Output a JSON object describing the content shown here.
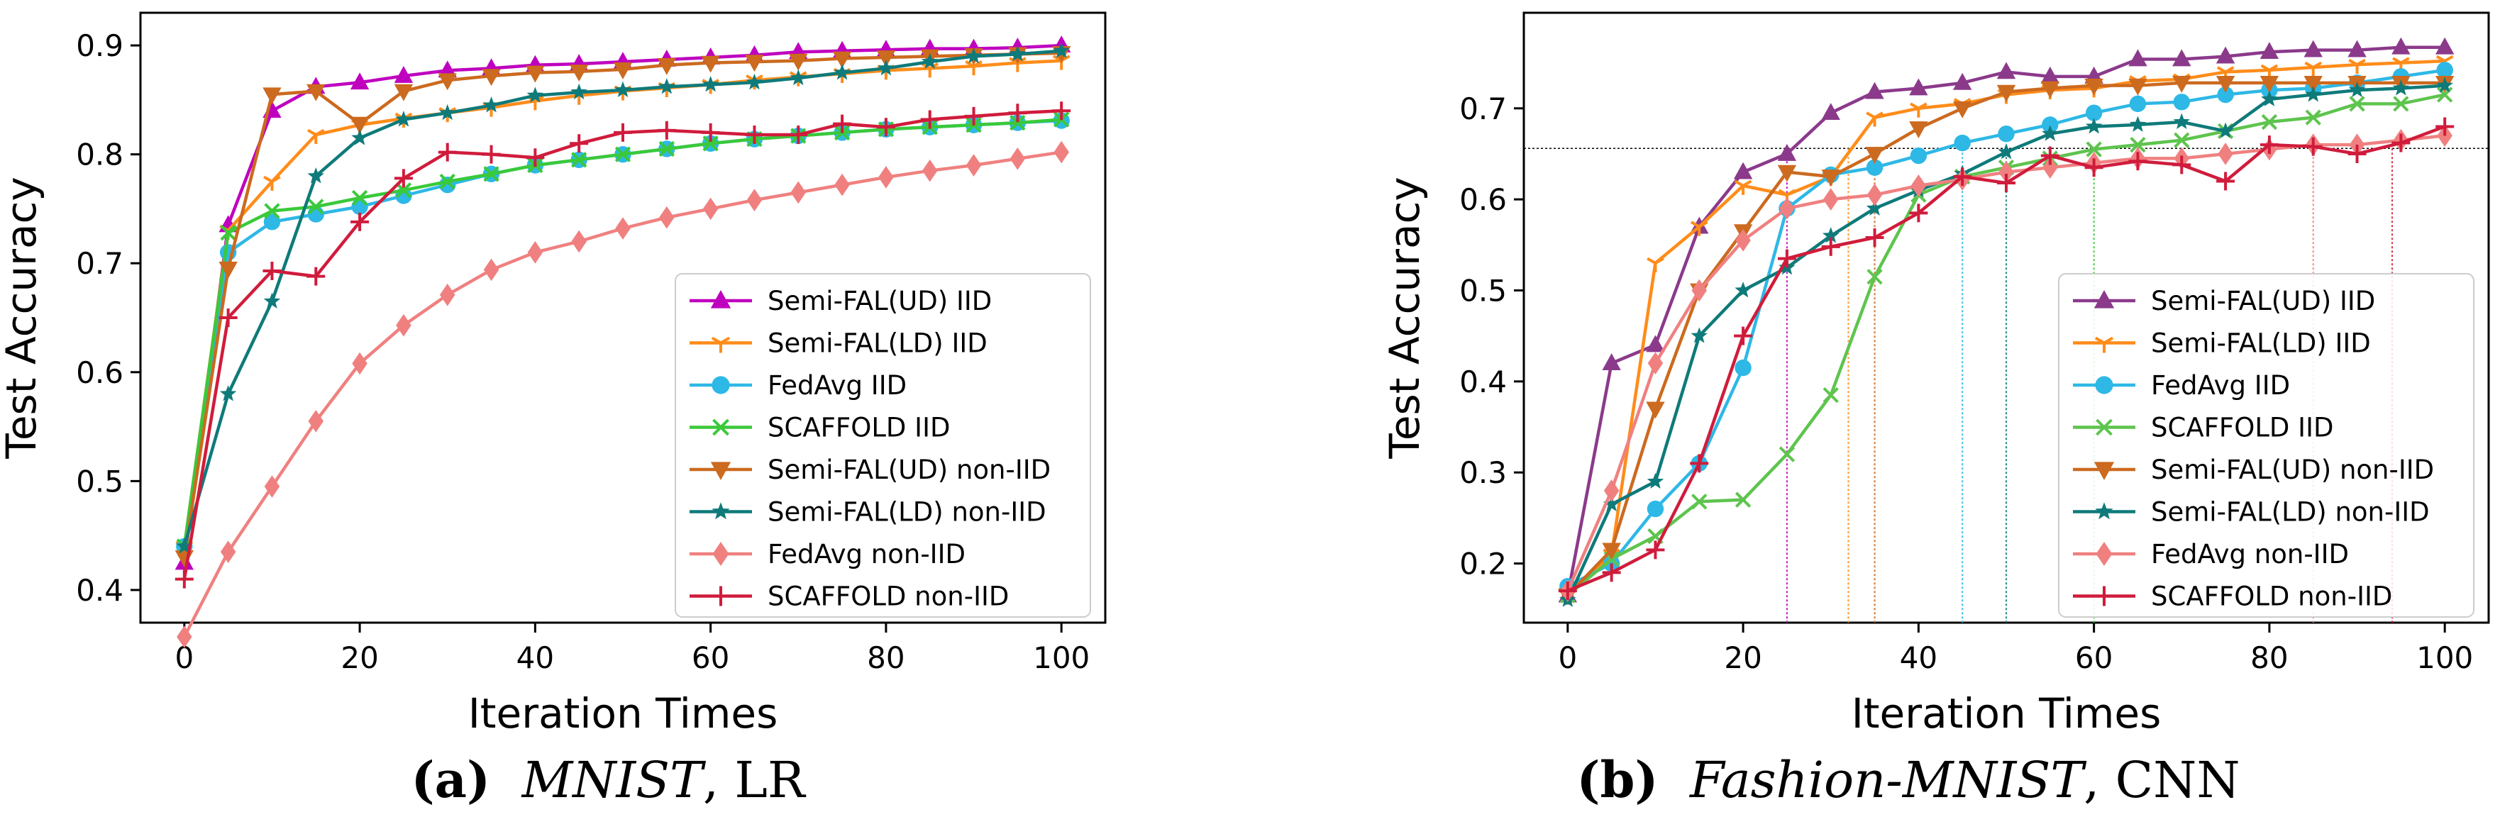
{
  "captions": [
    {
      "label": "(a)",
      "dataset": "MNIST",
      "model": ", LR"
    },
    {
      "label": "(b)",
      "dataset": "Fashion-MNIST",
      "model": ", CNN"
    }
  ],
  "chart_data": [
    {
      "type": "line",
      "title": "",
      "xlabel": "Iteration Times",
      "ylabel": "Test Accuracy",
      "xlim": [
        -5,
        105
      ],
      "ylim": [
        0.37,
        0.93
      ],
      "xticks": [
        0,
        20,
        40,
        60,
        80,
        100
      ],
      "yticks": [
        0.4,
        0.5,
        0.6,
        0.7,
        0.8,
        0.9
      ],
      "ytick_labels": [
        "0.4",
        "0.5",
        "0.6",
        "0.7",
        "0.8",
        "0.9"
      ],
      "legend_position": "lower-right",
      "x": [
        0,
        5,
        10,
        15,
        20,
        25,
        30,
        35,
        40,
        45,
        50,
        55,
        60,
        65,
        70,
        75,
        80,
        85,
        90,
        95,
        100
      ],
      "series": [
        {
          "name": "Semi-FAL(UD) IID",
          "color": "#bf00bf",
          "marker": "triangle-up",
          "values": [
            0.425,
            0.735,
            0.84,
            0.862,
            0.866,
            0.872,
            0.877,
            0.879,
            0.882,
            0.883,
            0.885,
            0.887,
            0.889,
            0.891,
            0.894,
            0.895,
            0.896,
            0.897,
            0.897,
            0.898,
            0.9
          ]
        },
        {
          "name": "Semi-FAL(LD) IID",
          "color": "#ff8c1a",
          "marker": "tri-down",
          "values": [
            0.44,
            0.73,
            0.775,
            0.818,
            0.827,
            0.833,
            0.838,
            0.843,
            0.849,
            0.854,
            0.858,
            0.861,
            0.864,
            0.868,
            0.871,
            0.874,
            0.877,
            0.879,
            0.881,
            0.884,
            0.886
          ]
        },
        {
          "name": "FedAvg IID",
          "color": "#2eb8e6",
          "marker": "circle",
          "values": [
            0.44,
            0.71,
            0.738,
            0.745,
            0.752,
            0.762,
            0.772,
            0.782,
            0.79,
            0.795,
            0.8,
            0.805,
            0.81,
            0.814,
            0.817,
            0.82,
            0.823,
            0.825,
            0.827,
            0.829,
            0.831
          ]
        },
        {
          "name": "SCAFFOLD IID",
          "color": "#3ac93a",
          "marker": "x",
          "values": [
            0.44,
            0.728,
            0.748,
            0.752,
            0.76,
            0.767,
            0.775,
            0.782,
            0.79,
            0.795,
            0.8,
            0.805,
            0.81,
            0.814,
            0.817,
            0.82,
            0.823,
            0.825,
            0.827,
            0.829,
            0.832
          ]
        },
        {
          "name": "Semi-FAL(UD) non-IID",
          "color": "#cc6a1f",
          "marker": "triangle-down",
          "values": [
            0.43,
            0.695,
            0.855,
            0.858,
            0.828,
            0.858,
            0.868,
            0.872,
            0.875,
            0.876,
            0.878,
            0.882,
            0.884,
            0.885,
            0.886,
            0.888,
            0.889,
            0.89,
            0.891,
            0.892,
            0.893
          ]
        },
        {
          "name": "Semi-FAL(LD) non-IID",
          "color": "#0f7a7a",
          "marker": "star",
          "values": [
            0.44,
            0.58,
            0.665,
            0.78,
            0.815,
            0.832,
            0.838,
            0.845,
            0.854,
            0.857,
            0.859,
            0.862,
            0.864,
            0.866,
            0.87,
            0.875,
            0.879,
            0.885,
            0.89,
            0.892,
            0.895
          ]
        },
        {
          "name": "FedAvg non-IID",
          "color": "#f08080",
          "marker": "diamond",
          "values": [
            0.357,
            0.435,
            0.495,
            0.555,
            0.608,
            0.643,
            0.671,
            0.694,
            0.71,
            0.72,
            0.732,
            0.742,
            0.75,
            0.758,
            0.765,
            0.772,
            0.779,
            0.785,
            0.79,
            0.796,
            0.802
          ]
        },
        {
          "name": "SCAFFOLD non-IID",
          "color": "#d01c3c",
          "marker": "plus",
          "values": [
            0.41,
            0.65,
            0.693,
            0.688,
            0.738,
            0.778,
            0.802,
            0.8,
            0.797,
            0.81,
            0.82,
            0.822,
            0.82,
            0.818,
            0.818,
            0.828,
            0.825,
            0.832,
            0.835,
            0.838,
            0.84
          ]
        }
      ]
    },
    {
      "type": "line",
      "title": "",
      "xlabel": "Iteration Times",
      "ylabel": "Test Accuracy",
      "xlim": [
        -5,
        105
      ],
      "ylim": [
        0.135,
        0.805
      ],
      "xticks": [
        0,
        20,
        40,
        60,
        80,
        100
      ],
      "yticks": [
        0.2,
        0.3,
        0.4,
        0.5,
        0.6,
        0.7
      ],
      "ytick_labels": [
        "0.2",
        "0.3",
        "0.4",
        "0.5",
        "0.6",
        "0.7"
      ],
      "legend_position": "lower-right",
      "reference_line_y": 0.656,
      "threshold_markers": [
        {
          "x": 25,
          "color": "#bf00bf"
        },
        {
          "x": 32,
          "color": "#ff8c1a"
        },
        {
          "x": 35,
          "color": "#cc6a1f"
        },
        {
          "x": 45,
          "color": "#2eb8e6"
        },
        {
          "x": 50,
          "color": "#0f7a7a"
        },
        {
          "x": 60,
          "color": "#3ac93a"
        },
        {
          "x": 85,
          "color": "#f08080"
        },
        {
          "x": 94,
          "color": "#d01c3c"
        }
      ],
      "x": [
        0,
        5,
        10,
        15,
        20,
        25,
        30,
        35,
        40,
        45,
        50,
        55,
        60,
        65,
        70,
        75,
        80,
        85,
        90,
        95,
        100
      ],
      "series": [
        {
          "name": "Semi-FAL(UD) IID",
          "color": "#8b3a8b",
          "marker": "triangle-up",
          "values": [
            0.165,
            0.42,
            0.44,
            0.57,
            0.63,
            0.65,
            0.695,
            0.718,
            0.722,
            0.728,
            0.74,
            0.735,
            0.735,
            0.754,
            0.754,
            0.757,
            0.762,
            0.764,
            0.764,
            0.767,
            0.767
          ]
        },
        {
          "name": "Semi-FAL(LD) IID",
          "color": "#ff8c1a",
          "marker": "tri-down",
          "values": [
            0.165,
            0.21,
            0.53,
            0.57,
            0.615,
            0.605,
            0.625,
            0.69,
            0.7,
            0.705,
            0.715,
            0.72,
            0.722,
            0.73,
            0.732,
            0.74,
            0.742,
            0.745,
            0.748,
            0.75,
            0.752
          ]
        },
        {
          "name": "FedAvg IID",
          "color": "#2eb8e6",
          "marker": "circle",
          "values": [
            0.175,
            0.2,
            0.26,
            0.31,
            0.415,
            0.59,
            0.627,
            0.635,
            0.648,
            0.662,
            0.672,
            0.682,
            0.695,
            0.705,
            0.707,
            0.715,
            0.72,
            0.722,
            0.728,
            0.735,
            0.742
          ]
        },
        {
          "name": "SCAFFOLD IID",
          "color": "#5ec44e",
          "marker": "x",
          "values": [
            0.165,
            0.205,
            0.23,
            0.268,
            0.27,
            0.32,
            0.385,
            0.515,
            0.605,
            0.625,
            0.635,
            0.645,
            0.655,
            0.66,
            0.665,
            0.675,
            0.685,
            0.69,
            0.705,
            0.705,
            0.715
          ]
        },
        {
          "name": "Semi-FAL(UD) non-IID",
          "color": "#cc6a1f",
          "marker": "triangle-down",
          "values": [
            0.165,
            0.215,
            0.37,
            0.5,
            0.565,
            0.63,
            0.625,
            0.65,
            0.678,
            0.7,
            0.718,
            0.722,
            0.725,
            0.725,
            0.728,
            0.728,
            0.728,
            0.728,
            0.728,
            0.728,
            0.728
          ]
        },
        {
          "name": "Semi-FAL(LD) non-IID",
          "color": "#0f7a7a",
          "marker": "star",
          "values": [
            0.16,
            0.265,
            0.29,
            0.45,
            0.5,
            0.525,
            0.56,
            0.59,
            0.61,
            0.628,
            0.652,
            0.672,
            0.68,
            0.682,
            0.685,
            0.675,
            0.71,
            0.715,
            0.72,
            0.722,
            0.725
          ]
        },
        {
          "name": "FedAvg non-IID",
          "color": "#f08080",
          "marker": "diamond",
          "values": [
            0.17,
            0.28,
            0.42,
            0.5,
            0.555,
            0.59,
            0.6,
            0.605,
            0.615,
            0.622,
            0.63,
            0.635,
            0.64,
            0.645,
            0.645,
            0.65,
            0.655,
            0.66,
            0.66,
            0.665,
            0.67
          ]
        },
        {
          "name": "SCAFFOLD non-IID",
          "color": "#d01c3c",
          "marker": "plus",
          "values": [
            0.17,
            0.19,
            0.215,
            0.31,
            0.45,
            0.535,
            0.548,
            0.558,
            0.585,
            0.625,
            0.618,
            0.648,
            0.635,
            0.642,
            0.638,
            0.62,
            0.66,
            0.658,
            0.65,
            0.662,
            0.68
          ]
        }
      ]
    }
  ]
}
